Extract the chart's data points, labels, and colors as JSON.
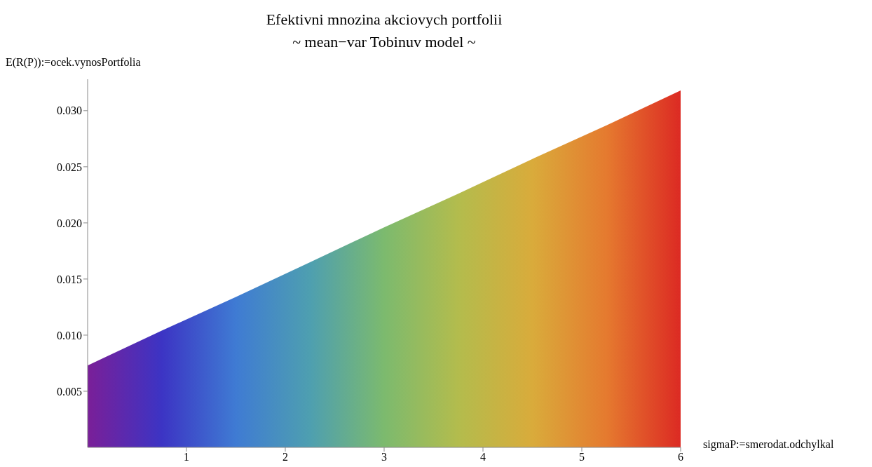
{
  "chart_data": {
    "type": "area",
    "title": "Efektivni mnozina akciovych portfolii",
    "subtitle": "~ mean−var Tobinuv model ~",
    "xlabel": "sigmaP:=smerodat.odchylkal",
    "ylabel": "E(R(P)):=ocek.vynosPortfolia",
    "x": [
      0,
      0.75,
      1.5,
      2.25,
      3,
      3.75,
      4.5,
      5.25,
      6
    ],
    "series": [
      {
        "values": [
          0.0073,
          0.0104,
          0.0134,
          0.0165,
          0.0196,
          0.0226,
          0.0257,
          0.0287,
          0.0318
        ],
        "colors": [
          "#7a1f98",
          "#3c34c4",
          "#3f7bd3",
          "#4e9fb0",
          "#7cba6e",
          "#b3bc4d",
          "#d9ab3b",
          "#e57a2f",
          "#dc2a23"
        ]
      }
    ],
    "xlim": [
      0,
      6
    ],
    "xticks": [
      1,
      2,
      3,
      4,
      5,
      6
    ],
    "ylim": [
      0,
      0.0328
    ],
    "yticks": [
      {
        "value": 0.005,
        "label": "0.005"
      },
      {
        "value": 0.01,
        "label": "0.010"
      },
      {
        "value": 0.015,
        "label": "0.015"
      },
      {
        "value": 0.02,
        "label": "0.020"
      },
      {
        "value": 0.025,
        "label": "0.025"
      },
      {
        "value": 0.03,
        "label": "0.030"
      }
    ],
    "grid": false,
    "legend": false
  }
}
